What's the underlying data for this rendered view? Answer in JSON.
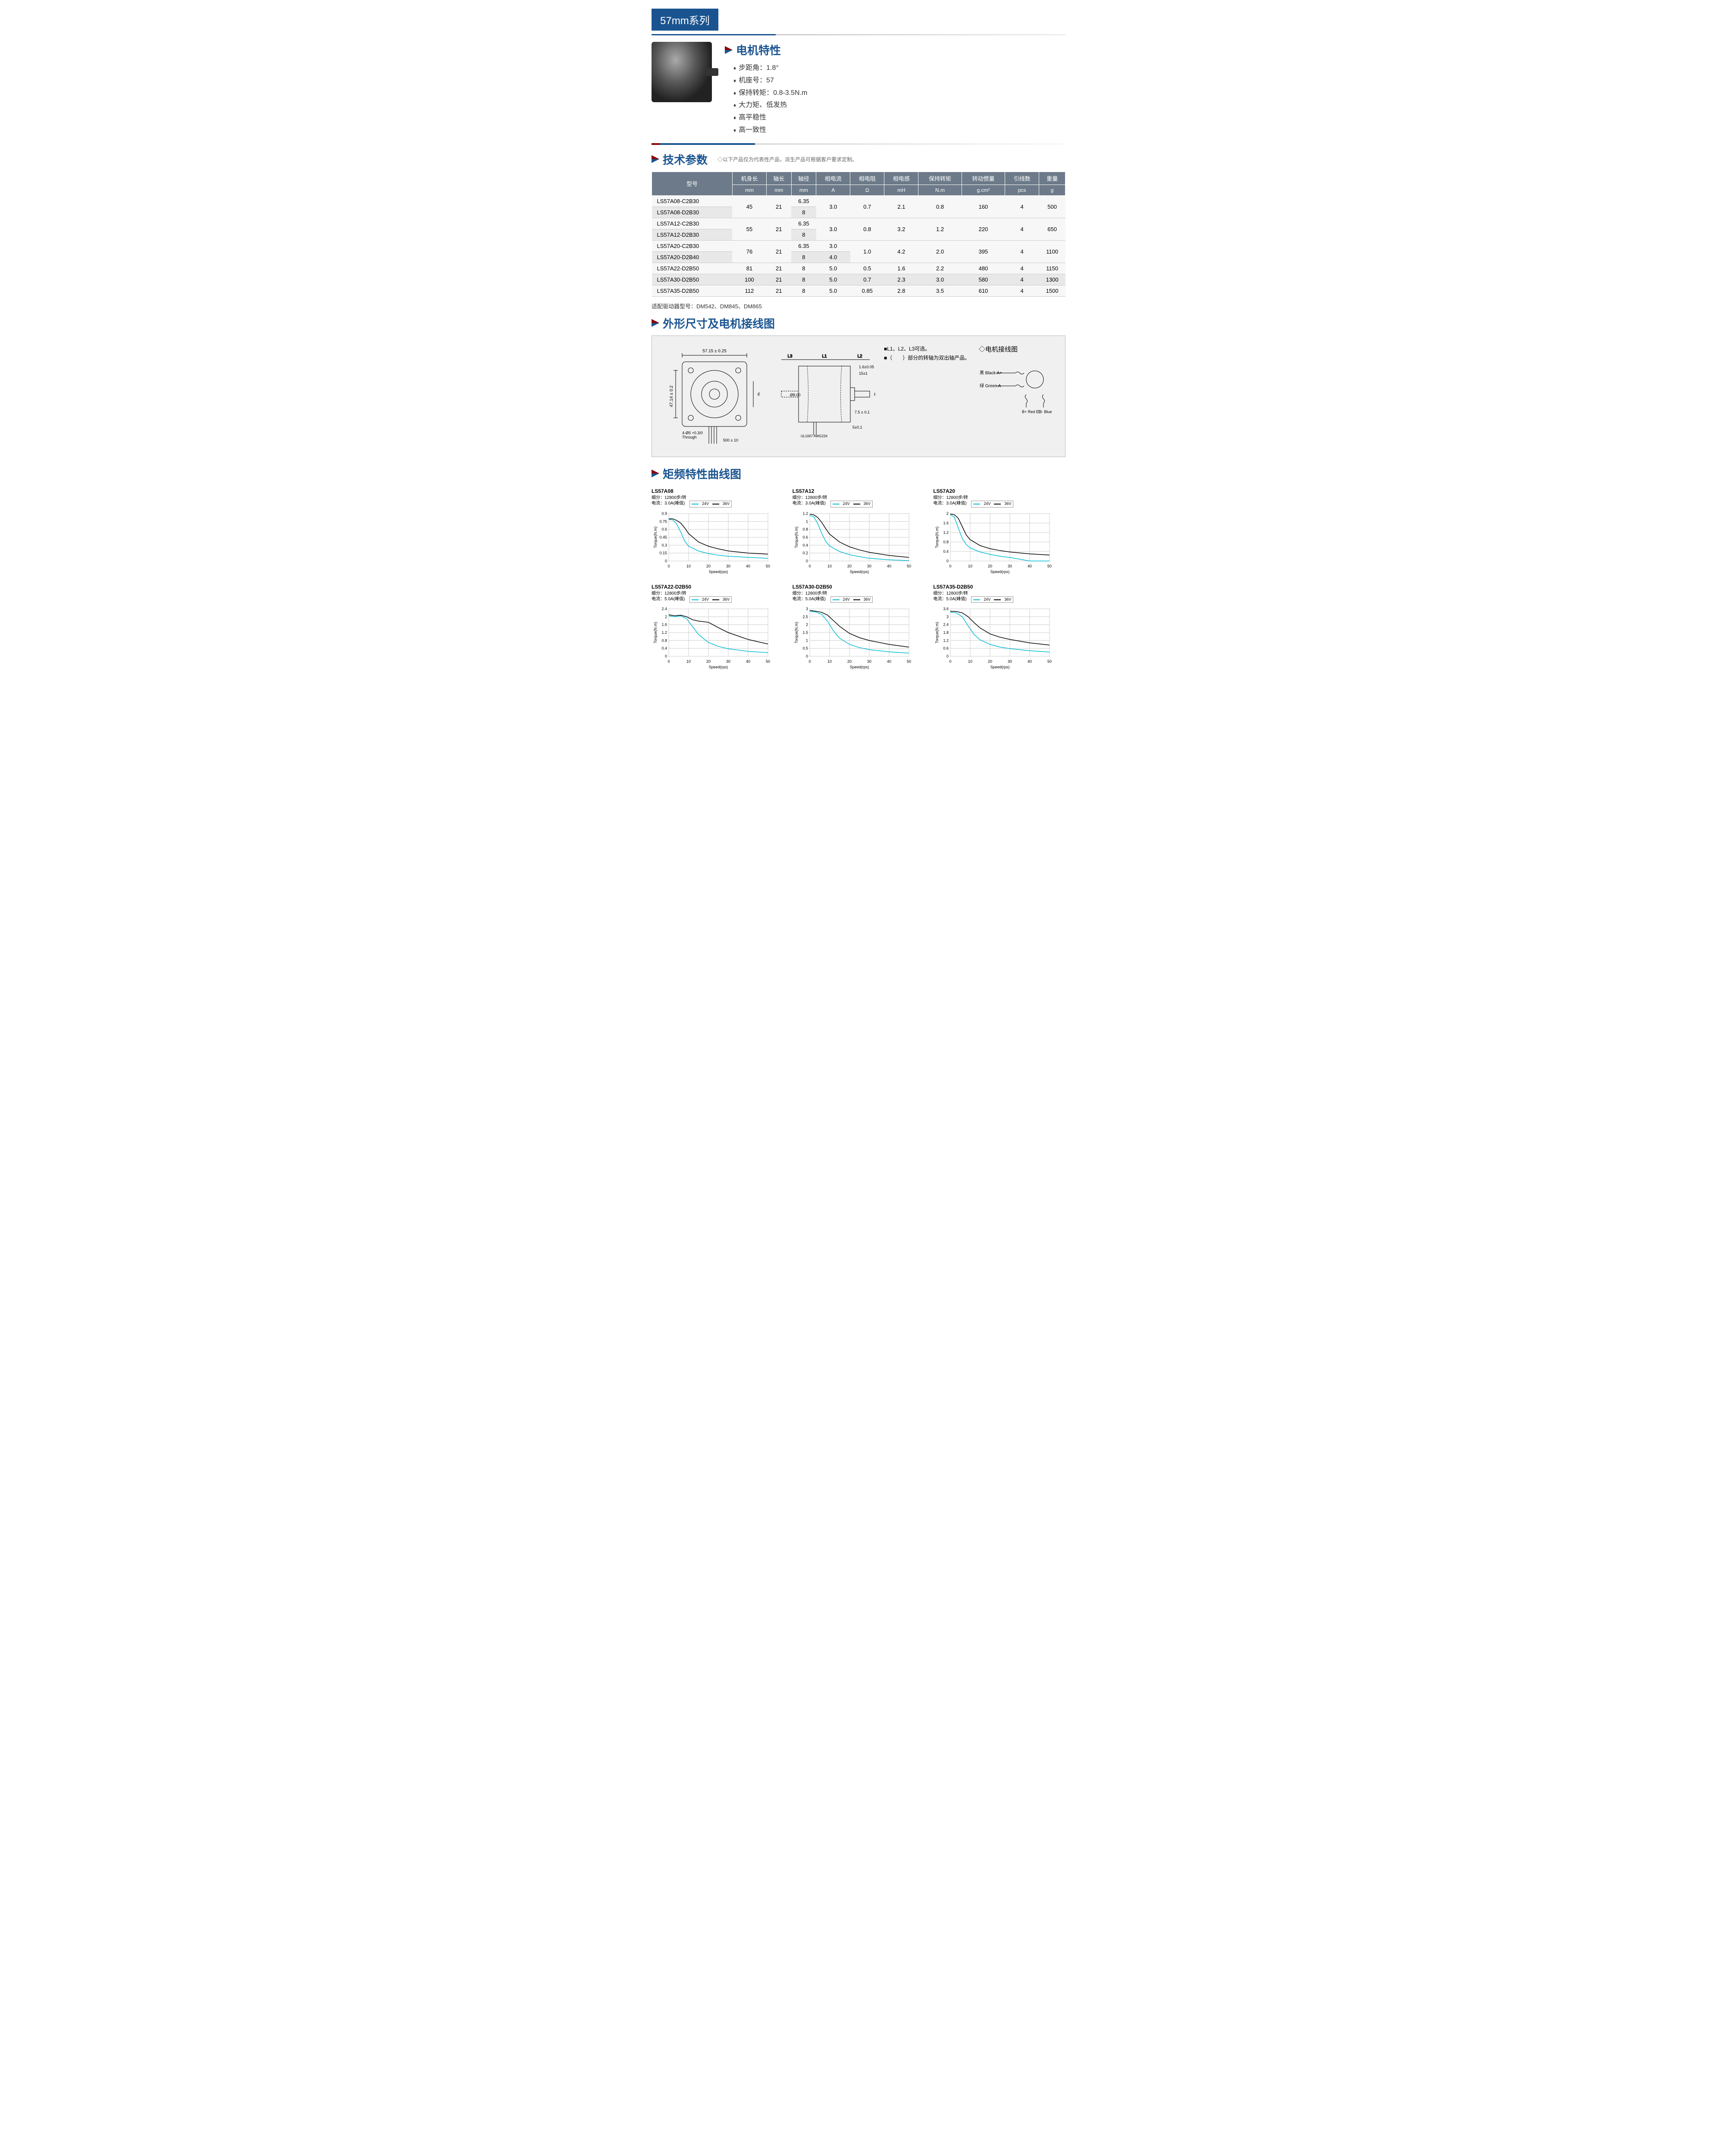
{
  "series_badge": "57mm系列",
  "characteristics": {
    "title": "电机特性",
    "items": [
      "步距角：1.8°",
      "机座号：57",
      "保持转矩：0.8-3.5N.m",
      "大力矩、低发热",
      "高平稳性",
      "高一致性"
    ]
  },
  "specs": {
    "title": "技术参数",
    "note": "◇以下产品仅为代表性产品，派生产品可根据客户要求定制。",
    "headers": [
      "型号",
      "机身长",
      "轴长",
      "轴径",
      "相电流",
      "相电阻",
      "相电感",
      "保持转矩",
      "转动惯量",
      "引线数",
      "重量"
    ],
    "units": [
      "",
      "mm",
      "mm",
      "mm",
      "A",
      "Ω",
      "mH",
      "N.m",
      "g.cm²",
      "pcs",
      "g"
    ],
    "rows": [
      {
        "model": "LS57A08-C2B30",
        "body": "45",
        "shaft_l": "21",
        "shaft_d": "6.35",
        "cur": "3.0",
        "res": "0.7",
        "ind": "2.1",
        "torque": "0.8",
        "inertia": "160",
        "leads": "4",
        "weight": "500",
        "rowspan_start": true,
        "span_cols": [
          "body",
          "shaft_l",
          "cur",
          "res",
          "ind",
          "torque",
          "inertia",
          "leads",
          "weight"
        ]
      },
      {
        "model": "LS57A08-D2B30",
        "shaft_d": "8"
      },
      {
        "model": "LS57A12-C2B30",
        "body": "55",
        "shaft_l": "21",
        "shaft_d": "6.35",
        "cur": "3.0",
        "res": "0.8",
        "ind": "3.2",
        "torque": "1.2",
        "inertia": "220",
        "leads": "4",
        "weight": "650",
        "rowspan_start": true
      },
      {
        "model": "LS57A12-D2B30",
        "shaft_d": "8"
      },
      {
        "model": "LS57A20-C2B30",
        "body": "76",
        "shaft_l": "21",
        "shaft_d": "6.35",
        "cur": "3.0",
        "res": "1.0",
        "ind": "4.2",
        "torque": "2.0",
        "inertia": "395",
        "leads": "4",
        "weight": "1100",
        "rowspan_start": true
      },
      {
        "model": "LS57A20-D2B40",
        "shaft_d": "8",
        "cur": "4.0"
      },
      {
        "model": "LS57A22-D2B50",
        "body": "81",
        "shaft_l": "21",
        "shaft_d": "8",
        "cur": "5.0",
        "res": "0.5",
        "ind": "1.6",
        "torque": "2.2",
        "inertia": "480",
        "leads": "4",
        "weight": "1150"
      },
      {
        "model": "LS57A30-D2B50",
        "body": "100",
        "shaft_l": "21",
        "shaft_d": "8",
        "cur": "5.0",
        "res": "0.7",
        "ind": "2.3",
        "torque": "3.0",
        "inertia": "580",
        "leads": "4",
        "weight": "1300"
      },
      {
        "model": "LS57A35-D2B50",
        "body": "112",
        "shaft_l": "21",
        "shaft_d": "8",
        "cur": "5.0",
        "res": "0.85",
        "ind": "2.8",
        "torque": "3.5",
        "inertia": "610",
        "leads": "4",
        "weight": "1500"
      }
    ],
    "driver_note": "适配驱动器型号：DM542、DM845、DM865"
  },
  "dimensions": {
    "title": "外形尺寸及电机接线图",
    "front_labels": {
      "width": "57.15 ± 0.25",
      "height": "47.14 ± 0.2",
      "hole": "4-Ø5",
      "hole_tol": "+0.3\n0",
      "through": "Through",
      "pilot": "Ø38.1",
      "pilot_tol": "0.000\n-0.052",
      "wire": "500 ± 10"
    },
    "side_labels": {
      "l1": "L1",
      "l2": "L2",
      "l3": "L3",
      "flat": "1.6±0.05",
      "flat_pos": "15±1",
      "shaft_d": "Ø8",
      "shaft_tol": "0.000\n-0.012",
      "boss": "7.5 ± 0.1",
      "step": "5±0.1",
      "awg": "UL1007\nAWG22#",
      "body_d": "Ø8.00"
    },
    "notes": [
      "■L1、L2、L3可选。",
      "■（　　）部分的转轴为双出轴产品。"
    ],
    "wiring": {
      "title": "◇电机接线图",
      "a_plus": "黑 Black A+",
      "a_minus": "绿 Green A-",
      "b_plus": "B+\nRed\n红",
      "b_minus": "B-\nBlue\n蓝"
    }
  },
  "curves": {
    "title": "矩频特性曲线图",
    "legend_labels": [
      "24V",
      "36V"
    ],
    "legend_colors": [
      "#00bcd4",
      "#000000"
    ],
    "xlabel": "Speed(rps)",
    "ylabel": "Torque(N.m)",
    "xmax": 50,
    "xtick": 10,
    "grid_color": "#cccccc",
    "charts": [
      {
        "title": "LS57A08",
        "sub": "细分：12800步/转\n电流：3.0A(峰值)",
        "ymax": 0.9,
        "yticks": [
          0,
          0.15,
          0.3,
          0.45,
          0.6,
          0.75,
          0.9
        ],
        "s24": [
          [
            0,
            0.79
          ],
          [
            2,
            0.78
          ],
          [
            4,
            0.7
          ],
          [
            6,
            0.55
          ],
          [
            8,
            0.38
          ],
          [
            10,
            0.28
          ],
          [
            15,
            0.19
          ],
          [
            20,
            0.14
          ],
          [
            25,
            0.11
          ],
          [
            30,
            0.09
          ],
          [
            40,
            0.07
          ],
          [
            50,
            0.05
          ]
        ],
        "s36": [
          [
            0,
            0.8
          ],
          [
            2,
            0.8
          ],
          [
            4,
            0.77
          ],
          [
            6,
            0.72
          ],
          [
            8,
            0.63
          ],
          [
            10,
            0.52
          ],
          [
            15,
            0.36
          ],
          [
            20,
            0.28
          ],
          [
            25,
            0.23
          ],
          [
            30,
            0.19
          ],
          [
            40,
            0.15
          ],
          [
            50,
            0.13
          ]
        ]
      },
      {
        "title": "LS57A12",
        "sub": "细分：12800步/转\n电流：3.0A(峰值)",
        "ymax": 1.2,
        "yticks": [
          0,
          0.2,
          0.4,
          0.6,
          0.8,
          1.0,
          1.2
        ],
        "s24": [
          [
            0,
            1.15
          ],
          [
            2,
            1.12
          ],
          [
            4,
            0.95
          ],
          [
            6,
            0.7
          ],
          [
            8,
            0.5
          ],
          [
            10,
            0.38
          ],
          [
            15,
            0.24
          ],
          [
            20,
            0.16
          ],
          [
            25,
            0.11
          ],
          [
            30,
            0.07
          ],
          [
            40,
            0.03
          ],
          [
            50,
            0.01
          ]
        ],
        "s36": [
          [
            0,
            1.18
          ],
          [
            2,
            1.17
          ],
          [
            4,
            1.1
          ],
          [
            6,
            0.98
          ],
          [
            8,
            0.82
          ],
          [
            10,
            0.68
          ],
          [
            15,
            0.48
          ],
          [
            20,
            0.36
          ],
          [
            25,
            0.28
          ],
          [
            30,
            0.22
          ],
          [
            40,
            0.14
          ],
          [
            50,
            0.09
          ]
        ]
      },
      {
        "title": "LS57A20",
        "sub": "细分：12800步/转\n电流：3.0A(峰值)",
        "ymax": 2.0,
        "yticks": [
          0,
          0.4,
          0.8,
          1.2,
          1.6,
          2.0
        ],
        "s24": [
          [
            0,
            1.95
          ],
          [
            2,
            1.85
          ],
          [
            4,
            1.4
          ],
          [
            6,
            0.95
          ],
          [
            8,
            0.7
          ],
          [
            10,
            0.55
          ],
          [
            15,
            0.38
          ],
          [
            20,
            0.28
          ],
          [
            25,
            0.2
          ],
          [
            30,
            0.15
          ],
          [
            40,
            0
          ],
          [
            50,
            0
          ]
        ],
        "s36": [
          [
            0,
            1.98
          ],
          [
            2,
            1.95
          ],
          [
            4,
            1.8
          ],
          [
            6,
            1.45
          ],
          [
            8,
            1.1
          ],
          [
            10,
            0.9
          ],
          [
            15,
            0.65
          ],
          [
            20,
            0.52
          ],
          [
            25,
            0.44
          ],
          [
            30,
            0.38
          ],
          [
            40,
            0.3
          ],
          [
            50,
            0.25
          ]
        ]
      },
      {
        "title": "LS57A22-D2B50",
        "sub": "细分：12800步/转\n电流：5.0A(峰值)",
        "ymax": 2.4,
        "yticks": [
          0,
          0.4,
          0.8,
          1.2,
          1.6,
          2.0,
          2.4
        ],
        "s24": [
          [
            0,
            2.05
          ],
          [
            3,
            2.0
          ],
          [
            6,
            2.05
          ],
          [
            9,
            1.9
          ],
          [
            12,
            1.5
          ],
          [
            15,
            1.1
          ],
          [
            20,
            0.7
          ],
          [
            25,
            0.5
          ],
          [
            30,
            0.38
          ],
          [
            40,
            0.25
          ],
          [
            50,
            0.18
          ]
        ],
        "s36": [
          [
            0,
            2.1
          ],
          [
            3,
            2.05
          ],
          [
            6,
            2.08
          ],
          [
            9,
            2.0
          ],
          [
            12,
            1.85
          ],
          [
            15,
            1.78
          ],
          [
            20,
            1.72
          ],
          [
            25,
            1.45
          ],
          [
            30,
            1.2
          ],
          [
            40,
            0.85
          ],
          [
            50,
            0.62
          ]
        ]
      },
      {
        "title": "LS57A30-D2B50",
        "sub": "细分：12800步/转\n电流：5.0A(峰值)",
        "ymax": 3.0,
        "yticks": [
          0,
          0.5,
          1.0,
          1.5,
          2.0,
          2.5,
          3.0
        ],
        "s24": [
          [
            0,
            2.85
          ],
          [
            3,
            2.8
          ],
          [
            6,
            2.65
          ],
          [
            9,
            2.2
          ],
          [
            12,
            1.6
          ],
          [
            15,
            1.15
          ],
          [
            20,
            0.75
          ],
          [
            25,
            0.55
          ],
          [
            30,
            0.42
          ],
          [
            40,
            0.28
          ],
          [
            50,
            0.2
          ]
        ],
        "s36": [
          [
            0,
            2.9
          ],
          [
            3,
            2.85
          ],
          [
            6,
            2.78
          ],
          [
            9,
            2.6
          ],
          [
            12,
            2.25
          ],
          [
            15,
            1.9
          ],
          [
            20,
            1.45
          ],
          [
            25,
            1.18
          ],
          [
            30,
            1.0
          ],
          [
            40,
            0.75
          ],
          [
            50,
            0.58
          ]
        ]
      },
      {
        "title": "LS57A35-D2B50",
        "sub": "细分：12800步/转\n电流：5.0A(峰值)",
        "ymax": 3.6,
        "yticks": [
          0,
          0.6,
          1.2,
          1.8,
          2.4,
          3.0,
          3.6
        ],
        "s24": [
          [
            0,
            3.35
          ],
          [
            3,
            3.3
          ],
          [
            6,
            3.0
          ],
          [
            9,
            2.3
          ],
          [
            12,
            1.65
          ],
          [
            15,
            1.25
          ],
          [
            20,
            0.9
          ],
          [
            25,
            0.7
          ],
          [
            30,
            0.58
          ],
          [
            40,
            0.42
          ],
          [
            50,
            0.32
          ]
        ],
        "s36": [
          [
            0,
            3.42
          ],
          [
            3,
            3.4
          ],
          [
            6,
            3.3
          ],
          [
            9,
            3.0
          ],
          [
            12,
            2.55
          ],
          [
            15,
            2.15
          ],
          [
            20,
            1.7
          ],
          [
            25,
            1.45
          ],
          [
            30,
            1.28
          ],
          [
            40,
            1.02
          ],
          [
            50,
            0.85
          ]
        ]
      }
    ]
  }
}
